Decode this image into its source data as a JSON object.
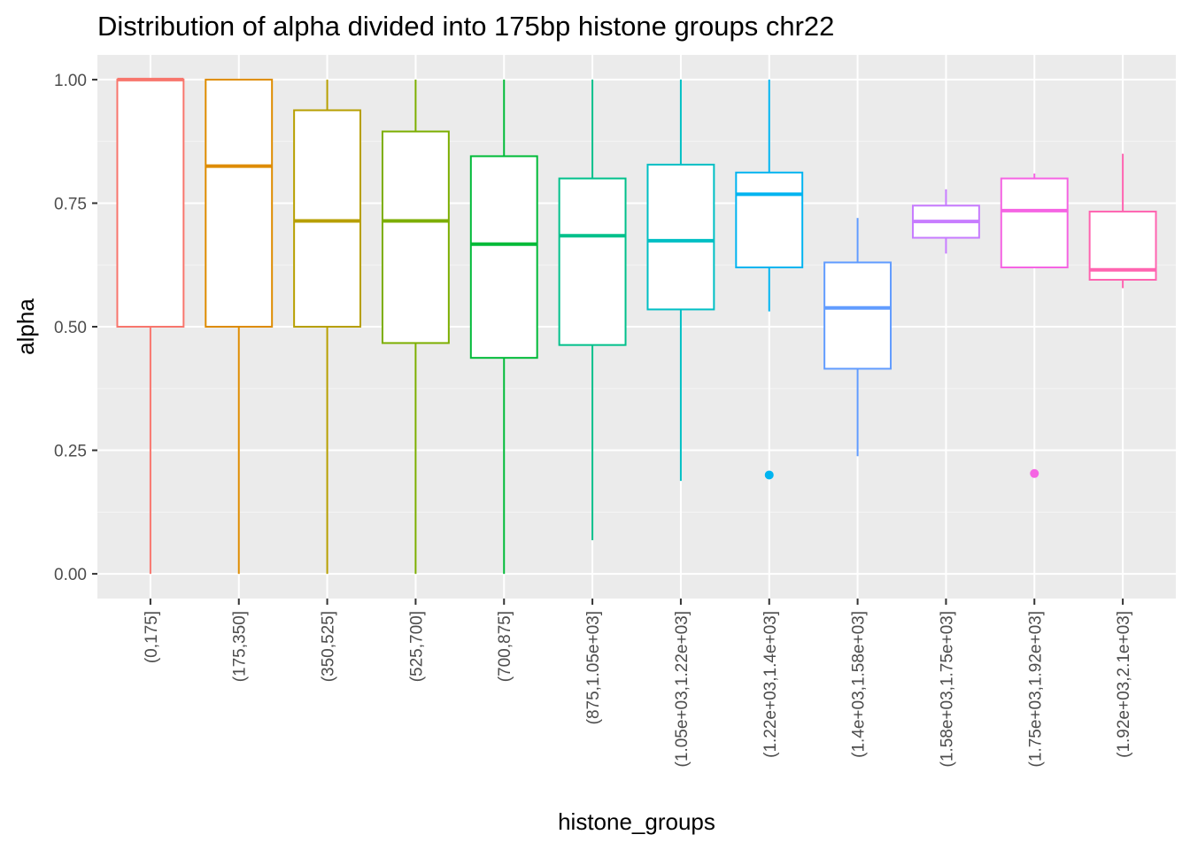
{
  "chart_data": {
    "type": "box",
    "title": "Distribution of alpha divided into 175bp histone groups chr22",
    "xlabel": "histone_groups",
    "ylabel": "alpha",
    "ylim": [
      -0.05,
      1.05
    ],
    "yticks": [
      0.0,
      0.25,
      0.5,
      0.75,
      1.0
    ],
    "ytick_labels": [
      "0.00",
      "0.25",
      "0.50",
      "0.75",
      "1.00"
    ],
    "grid": true,
    "legend": "none",
    "categories": [
      "(0,175]",
      "(175,350]",
      "(350,525]",
      "(525,700]",
      "(700,875]",
      "(875,1.05e+03]",
      "(1.05e+03,1.22e+03]",
      "(1.22e+03,1.4e+03]",
      "(1.4e+03,1.58e+03]",
      "(1.58e+03,1.75e+03]",
      "(1.75e+03,1.92e+03]",
      "(1.92e+03,2.1e+03]"
    ],
    "boxes": [
      {
        "color": "#F8766D",
        "min": 0.0,
        "q1": 0.5,
        "median": 1.0,
        "q3": 1.0,
        "max": 1.0,
        "outliers": []
      },
      {
        "color": "#DE8C00",
        "min": 0.0,
        "q1": 0.5,
        "median": 0.825,
        "q3": 1.0,
        "max": 1.0,
        "outliers": []
      },
      {
        "color": "#B79F00",
        "min": 0.0,
        "q1": 0.5,
        "median": 0.714,
        "q3": 0.938,
        "max": 1.0,
        "outliers": []
      },
      {
        "color": "#7CAE00",
        "min": 0.0,
        "q1": 0.467,
        "median": 0.714,
        "q3": 0.895,
        "max": 1.0,
        "outliers": []
      },
      {
        "color": "#00BA38",
        "min": 0.0,
        "q1": 0.437,
        "median": 0.667,
        "q3": 0.845,
        "max": 1.0,
        "outliers": []
      },
      {
        "color": "#00C08B",
        "min": 0.068,
        "q1": 0.463,
        "median": 0.684,
        "q3": 0.8,
        "max": 1.0,
        "outliers": []
      },
      {
        "color": "#00BFC4",
        "min": 0.188,
        "q1": 0.535,
        "median": 0.674,
        "q3": 0.828,
        "max": 1.0,
        "outliers": []
      },
      {
        "color": "#00B4F0",
        "min": 0.531,
        "q1": 0.62,
        "median": 0.768,
        "q3": 0.812,
        "max": 1.0,
        "outliers": [
          0.2
        ]
      },
      {
        "color": "#619CFF",
        "min": 0.238,
        "q1": 0.415,
        "median": 0.538,
        "q3": 0.63,
        "max": 0.72,
        "outliers": []
      },
      {
        "color": "#C77CFF",
        "min": 0.648,
        "q1": 0.68,
        "median": 0.713,
        "q3": 0.745,
        "max": 0.778,
        "outliers": []
      },
      {
        "color": "#F564E3",
        "min": 0.62,
        "q1": 0.62,
        "median": 0.735,
        "q3": 0.8,
        "max": 0.81,
        "outliers": [
          0.203
        ]
      },
      {
        "color": "#FF64B0",
        "min": 0.578,
        "q1": 0.595,
        "median": 0.615,
        "q3": 0.733,
        "max": 0.85,
        "outliers": []
      }
    ]
  }
}
